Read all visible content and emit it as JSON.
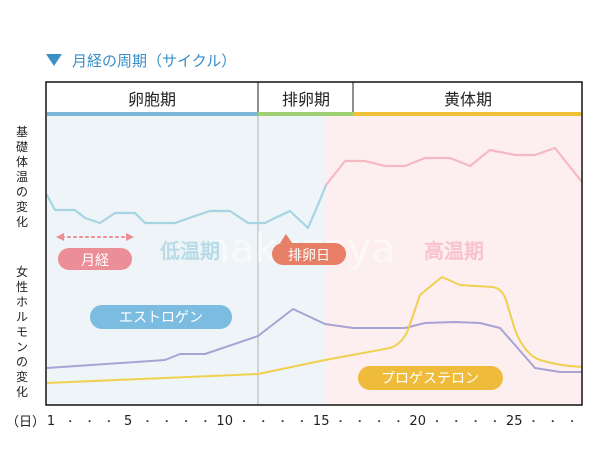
{
  "title": "月経の周期（サイクル）",
  "phases": {
    "follicular": "卵胞期",
    "ovulatory": "排卵期",
    "luteal": "黄体期"
  },
  "side_labels": {
    "bbt_change": "基礎体温の変化",
    "hormone_change": "女性ホルモンの変化"
  },
  "bbt_zones": {
    "low": "低温期",
    "high": "高温期"
  },
  "pills": {
    "menstruation": "月経",
    "ovulation_day": "排卵日",
    "estrogen": "エストロゲン",
    "progesterone": "プロゲステロン"
  },
  "watermark": "nakuzaya",
  "day_axis": {
    "unit_label": "（日）",
    "labels": [
      {
        "day": 1,
        "text": "1"
      },
      {
        "day": 5,
        "text": "5"
      },
      {
        "day": 10,
        "text": "10"
      },
      {
        "day": 15,
        "text": "15"
      },
      {
        "day": 20,
        "text": "20"
      },
      {
        "day": 25,
        "text": "25"
      }
    ],
    "dot": "・"
  },
  "colors": {
    "title_triangle": "#3a8fc8",
    "follicular_bg": "#eef4f7",
    "luteal_bg": "#fdeef0",
    "follicular_bar": "#7bb8d8",
    "ovulatory_bar": "#9fd072",
    "luteal_bar": "#f0c23c",
    "bbt_low_line": "#a6d5e2",
    "bbt_high_line": "#f4b9c2",
    "estrogen_line": "#a7a4d4",
    "progesterone_line": "#f0d050",
    "menstruation_pill": "#ec8e98",
    "ovulation_pill": "#e77e66",
    "estrogen_pill": "#7bbce0",
    "progesterone_pill": "#eebc3a",
    "low_temp_text": "#b9dbe8",
    "high_temp_text": "#f8c3cb"
  }
}
